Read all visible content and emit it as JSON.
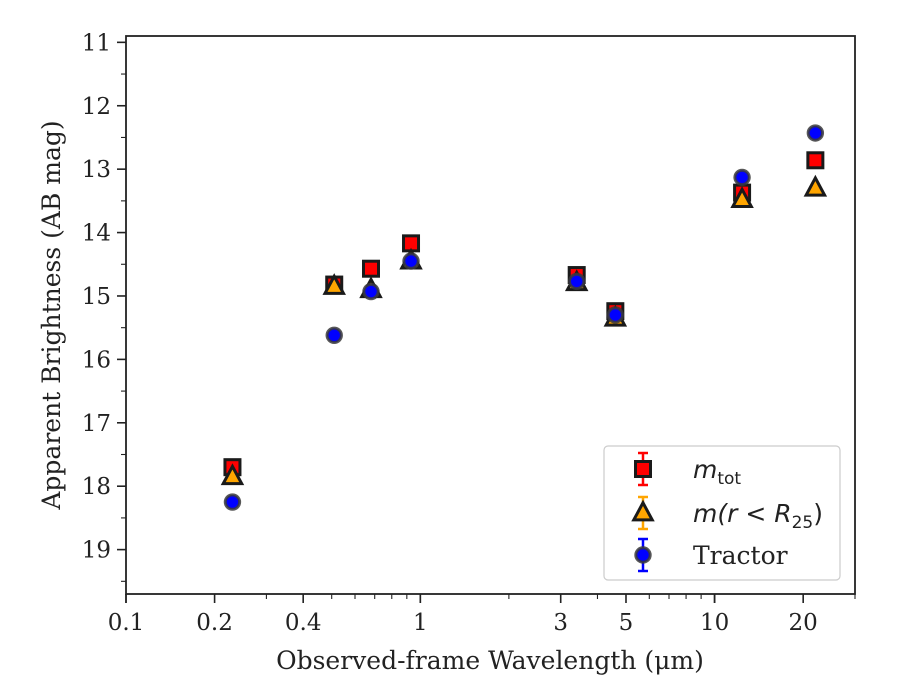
{
  "chart_data": {
    "type": "scatter",
    "xlabel": "Observed-frame Wavelength (μm)",
    "ylabel": "Apparent Brightness (AB mag)",
    "xscale": "log",
    "xlim": [
      0.1,
      30
    ],
    "ylim": [
      19.7,
      10.9
    ],
    "y_inverted": true,
    "grid": false,
    "legend_position": "lower-right",
    "x_ticks": [
      {
        "value": 0.1,
        "label": "0.1"
      },
      {
        "value": 0.2,
        "label": "0.2"
      },
      {
        "value": 0.4,
        "label": "0.4"
      },
      {
        "value": 1,
        "label": "1"
      },
      {
        "value": 3,
        "label": "3"
      },
      {
        "value": 5,
        "label": "5"
      },
      {
        "value": 10,
        "label": "10"
      },
      {
        "value": 20,
        "label": "20"
      }
    ],
    "y_ticks": [
      11,
      12,
      13,
      14,
      15,
      16,
      17,
      18,
      19
    ],
    "series": [
      {
        "name": "m_tot",
        "legend_main": "m",
        "legend_sub": "tot",
        "legend_paren": "",
        "marker": "square",
        "color": "#ff0000",
        "errorbar_color": "#ff0000",
        "points": [
          {
            "x": 0.23,
            "y": 17.7
          },
          {
            "x": 0.51,
            "y": 14.82
          },
          {
            "x": 0.68,
            "y": 14.57
          },
          {
            "x": 0.93,
            "y": 14.17
          },
          {
            "x": 3.4,
            "y": 14.67
          },
          {
            "x": 4.6,
            "y": 15.24
          },
          {
            "x": 12.4,
            "y": 13.37
          },
          {
            "x": 22.0,
            "y": 12.86
          }
        ]
      },
      {
        "name": "m(r < R25)",
        "legend_main": "m(r < R",
        "legend_sub": "25",
        "legend_paren": ")",
        "marker": "triangle",
        "color": "#ffa500",
        "errorbar_color": "#ffa500",
        "points": [
          {
            "x": 0.23,
            "y": 17.85
          },
          {
            "x": 0.51,
            "y": 14.85
          },
          {
            "x": 0.68,
            "y": 14.9
          },
          {
            "x": 0.93,
            "y": 14.45
          },
          {
            "x": 3.4,
            "y": 14.79
          },
          {
            "x": 4.6,
            "y": 15.35
          },
          {
            "x": 12.4,
            "y": 13.48
          },
          {
            "x": 22.0,
            "y": 13.3
          }
        ]
      },
      {
        "name": "Tractor",
        "legend_main": "Tractor",
        "legend_sub": "",
        "legend_paren": "",
        "marker": "circle",
        "color": "#0000ff",
        "errorbar_color": "#0000ff",
        "points": [
          {
            "x": 0.23,
            "y": 18.25
          },
          {
            "x": 0.51,
            "y": 15.62
          },
          {
            "x": 0.68,
            "y": 14.93
          },
          {
            "x": 0.93,
            "y": 14.45
          },
          {
            "x": 3.4,
            "y": 14.77
          },
          {
            "x": 4.6,
            "y": 15.3
          },
          {
            "x": 12.4,
            "y": 13.13
          },
          {
            "x": 22.0,
            "y": 12.43
          }
        ]
      }
    ]
  }
}
